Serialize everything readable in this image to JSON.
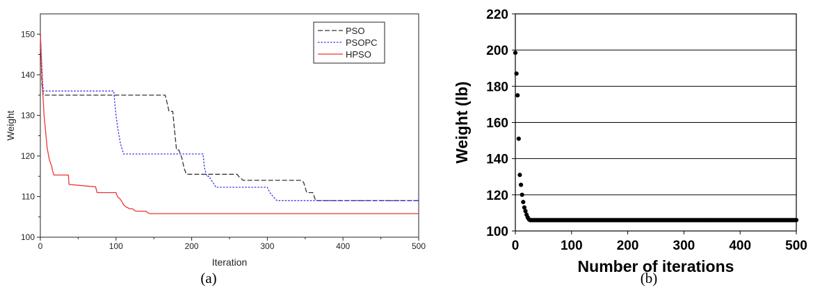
{
  "chart_data": [
    {
      "type": "line",
      "panel_label": "(a)",
      "xlabel": "Iteration",
      "ylabel": "Weight",
      "xlim": [
        0,
        500
      ],
      "ylim": [
        100,
        155
      ],
      "xticks": [
        0,
        100,
        200,
        300,
        400,
        500
      ],
      "yticks": [
        100,
        110,
        120,
        130,
        140,
        150
      ],
      "grid": false,
      "legend_position": "top-right",
      "series": [
        {
          "name": "PSO",
          "color": "#333333",
          "dash": "dashed",
          "x": [
            0,
            1,
            2,
            3,
            4,
            165,
            167,
            170,
            175,
            177,
            180,
            183,
            187,
            190,
            193,
            260,
            262,
            265,
            268,
            300,
            345,
            348,
            352,
            360,
            362,
            364,
            365,
            500
          ],
          "y": [
            150,
            145,
            138,
            136,
            135,
            135,
            133.5,
            131,
            131,
            127,
            121.5,
            121.5,
            119.5,
            117,
            115.5,
            115.5,
            115,
            114.5,
            114,
            114,
            114,
            113.5,
            111,
            111,
            110,
            109,
            109,
            109
          ]
        },
        {
          "name": "PSOPC",
          "color": "#3333ee",
          "dash": "dotted",
          "x": [
            0,
            2,
            3,
            4,
            97,
            98,
            100,
            103,
            106,
            110,
            112,
            215,
            217,
            220,
            223,
            226,
            230,
            232,
            300,
            302,
            305,
            308,
            310,
            313,
            500
          ],
          "y": [
            150,
            142,
            138,
            136,
            136,
            134,
            130,
            126,
            123,
            120.5,
            120.5,
            120.5,
            117,
            115,
            115,
            114,
            113,
            112.3,
            112.3,
            111.5,
            110.5,
            110,
            109.5,
            109,
            109
          ]
        },
        {
          "name": "HPSO",
          "color": "#ee3333",
          "dash": "solid",
          "x": [
            0,
            1,
            2,
            3,
            4,
            5,
            6,
            7,
            8,
            9,
            10,
            11,
            12,
            14,
            15,
            16,
            18,
            37,
            38,
            73,
            75,
            100,
            102,
            105,
            107,
            110,
            113,
            118,
            122,
            125,
            128,
            140,
            142,
            145,
            500
          ],
          "y": [
            150,
            145,
            140,
            136,
            133,
            130,
            128,
            126,
            124,
            122,
            121,
            120,
            119,
            118,
            117.5,
            116.5,
            115.3,
            115.3,
            113,
            112.4,
            111,
            111,
            110,
            109.5,
            109,
            108,
            107.5,
            107,
            107,
            106.5,
            106.4,
            106.4,
            106,
            105.8,
            105.8
          ]
        }
      ]
    },
    {
      "type": "scatter",
      "panel_label": "(b)",
      "xlabel": "Number of iterations",
      "ylabel": "Weight (lb)",
      "xlim": [
        0,
        500
      ],
      "ylim": [
        100,
        220
      ],
      "xticks": [
        0,
        100,
        200,
        300,
        400,
        500
      ],
      "yticks": [
        100,
        120,
        140,
        160,
        180,
        200,
        220
      ],
      "grid": true,
      "marker_color": "#000000",
      "series": [
        {
          "x_start": 0,
          "x_step": 2,
          "y": [
            198.5,
            187,
            175,
            151,
            131,
            125.5,
            120,
            116,
            113,
            111,
            109,
            107.5,
            106.5,
            106
          ],
          "y_tail": 106,
          "x_end": 500
        }
      ]
    }
  ]
}
